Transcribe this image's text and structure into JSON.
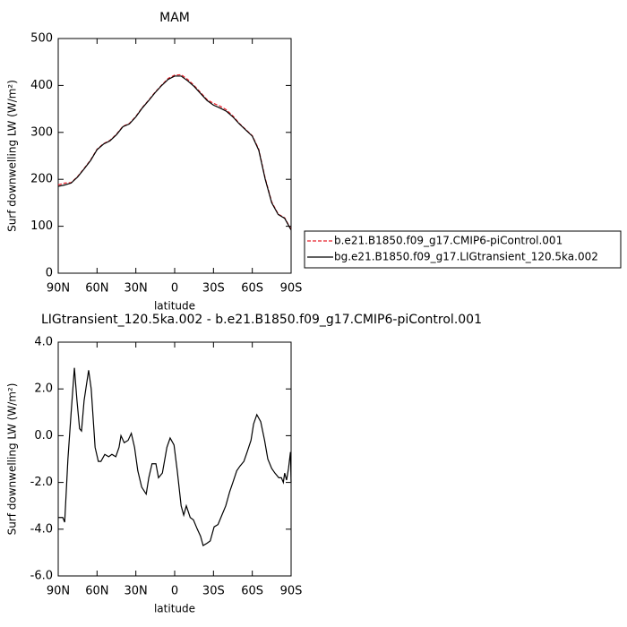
{
  "chart_data": [
    {
      "type": "line",
      "title": "MAM",
      "xlabel": "latitude",
      "ylabel": "Surf downwelling LW (W/m²)",
      "x": [
        90,
        85,
        80,
        75,
        70,
        65,
        60,
        55,
        50,
        45,
        40,
        35,
        30,
        25,
        20,
        15,
        10,
        5,
        0,
        -5,
        -10,
        -15,
        -20,
        -25,
        -30,
        -35,
        -40,
        -45,
        -50,
        -55,
        -60,
        -65,
        -70,
        -75,
        -80,
        -85,
        -90
      ],
      "series": [
        {
          "name": "b.e21.B1850.f09_g17.CMIP6-piControl.001",
          "color": "#e8202a",
          "linestyle": "dashed",
          "values": [
            188,
            192,
            193,
            206,
            223,
            241,
            264,
            276,
            283,
            296,
            313,
            319,
            334,
            353,
            369,
            386,
            401,
            415,
            422,
            423,
            413,
            400,
            385,
            370,
            362,
            356,
            348,
            335,
            319,
            306,
            293,
            264,
            202,
            152,
            126,
            118,
            93
          ]
        },
        {
          "name": "bg.e21.B1850.f09_g17.LIGtransient_120.5ka.002",
          "color": "#000000",
          "linestyle": "solid",
          "values": [
            185,
            188,
            192,
            205,
            222,
            240,
            263,
            275,
            282,
            295,
            312,
            318,
            333,
            352,
            368,
            385,
            400,
            413,
            420,
            420,
            410,
            398,
            383,
            368,
            358,
            352,
            345,
            333,
            318,
            305,
            292,
            262,
            200,
            150,
            125,
            117,
            92
          ]
        }
      ],
      "xlim": [
        90,
        -90
      ],
      "xticks": [
        {
          "value": 90,
          "label": "90N"
        },
        {
          "value": 60,
          "label": "60N"
        },
        {
          "value": 30,
          "label": "30N"
        },
        0,
        {
          "value": -30,
          "label": "30S"
        },
        {
          "value": -60,
          "label": "60S"
        },
        {
          "value": -90,
          "label": "90S"
        }
      ],
      "ylim": [
        0,
        500
      ],
      "yticks": [
        0,
        100,
        200,
        300,
        400,
        500
      ],
      "legend": "right"
    },
    {
      "type": "line",
      "title": "LIGtransient_120.5ka.002 - b.e21.B1850.f09_g17.CMIP6-piControl.001",
      "xlabel": "latitude",
      "ylabel": "Surf downwelling LW (W/m²)",
      "x": [
        90,
        86.5,
        85,
        82.5,
        80,
        77.5,
        75.5,
        73.5,
        72,
        70,
        66.5,
        64.5,
        61.5,
        59,
        57,
        54,
        51,
        48.5,
        45.5,
        43,
        41.5,
        39,
        36,
        33.5,
        31,
        28.5,
        25.5,
        22,
        20,
        17.5,
        14.5,
        12.5,
        9.5,
        6,
        3.5,
        0.5,
        -2,
        -5,
        -7,
        -9,
        -12,
        -14.5,
        -17.5,
        -20,
        -22,
        -25,
        -27.5,
        -30.5,
        -33.5,
        -36.5,
        -39.5,
        -42.5,
        -45,
        -48,
        -50.5,
        -53.5,
        -56,
        -59,
        -61,
        -63.5,
        -66.5,
        -69.5,
        -72,
        -75,
        -77.5,
        -80.5,
        -82.5,
        -84,
        -85,
        -86.5,
        -88,
        -89.5,
        -90
      ],
      "series": [
        {
          "color": "#000000",
          "linestyle": "solid",
          "values": [
            -3.5,
            -3.5,
            -3.7,
            -1.0,
            1.0,
            2.9,
            1.5,
            0.3,
            0.2,
            1.5,
            2.8,
            2.0,
            -0.5,
            -1.1,
            -1.1,
            -0.8,
            -0.9,
            -0.8,
            -0.9,
            -0.5,
            0.0,
            -0.3,
            -0.2,
            0.1,
            -0.5,
            -1.5,
            -2.2,
            -2.5,
            -1.8,
            -1.2,
            -1.2,
            -1.8,
            -1.6,
            -0.5,
            -0.1,
            -0.4,
            -1.5,
            -3.0,
            -3.4,
            -3.0,
            -3.5,
            -3.6,
            -4.0,
            -4.3,
            -4.7,
            -4.6,
            -4.5,
            -3.9,
            -3.8,
            -3.4,
            -3.0,
            -2.4,
            -2.0,
            -1.5,
            -1.3,
            -1.1,
            -0.7,
            -0.2,
            0.5,
            0.9,
            0.6,
            -0.2,
            -1.0,
            -1.4,
            -1.6,
            -1.8,
            -1.8,
            -2.0,
            -1.6,
            -1.9,
            -1.4,
            -0.7,
            -2.0
          ]
        }
      ],
      "xlim": [
        90,
        -90
      ],
      "xticks": [
        {
          "value": 90,
          "label": "90N"
        },
        {
          "value": 60,
          "label": "60N"
        },
        {
          "value": 30,
          "label": "30N"
        },
        0,
        {
          "value": -30,
          "label": "30S"
        },
        {
          "value": -60,
          "label": "60S"
        },
        {
          "value": -90,
          "label": "90S"
        }
      ],
      "ylim": [
        -6,
        4
      ],
      "yticks": [
        {
          "value": -6,
          "label": "-6.0"
        },
        {
          "value": -4,
          "label": "-4.0"
        },
        {
          "value": -2,
          "label": "-2.0"
        },
        {
          "value": 0,
          "label": "0.0"
        },
        {
          "value": 2,
          "label": "2.0"
        },
        {
          "value": 4,
          "label": "4.0"
        }
      ]
    }
  ]
}
